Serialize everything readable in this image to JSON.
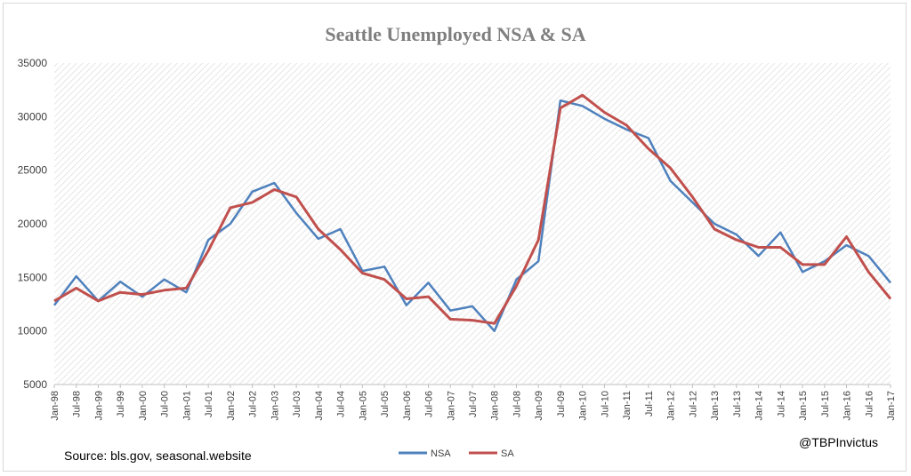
{
  "chart_data": {
    "type": "line",
    "title": "Seattle Unemployed NSA & SA",
    "xlabel": "",
    "ylabel": "",
    "ylim": [
      5000,
      35000
    ],
    "yticks": [
      5000,
      10000,
      15000,
      20000,
      25000,
      30000,
      35000
    ],
    "x_tick_labels": [
      "Jan-98",
      "Jul-98",
      "Jan-99",
      "Jul-99",
      "Jan-00",
      "Jul-00",
      "Jan-01",
      "Jul-01",
      "Jan-02",
      "Jul-02",
      "Jan-03",
      "Jul-03",
      "Jan-04",
      "Jul-04",
      "Jan-05",
      "Jul-05",
      "Jan-06",
      "Jul-06",
      "Jan-07",
      "Jul-07",
      "Jan-08",
      "Jul-08",
      "Jan-09",
      "Jul-09",
      "Jan-10",
      "Jul-10",
      "Jan-11",
      "Jul-11",
      "Jan-12",
      "Jul-12",
      "Jan-13",
      "Jul-13",
      "Jan-14",
      "Jul-14",
      "Jan-15",
      "Jul-15",
      "Jan-16",
      "Jul-16",
      "Jan-17"
    ],
    "grid": "diagonal-hatch background",
    "legend_position": "bottom-center",
    "series": [
      {
        "name": "NSA",
        "color": "#4f81bd",
        "x": [
          "Jan-98",
          "Jul-98",
          "Jan-99",
          "Jul-99",
          "Jan-00",
          "Jul-00",
          "Jan-01",
          "Jul-01",
          "Jan-02",
          "Jul-02",
          "Jan-03",
          "Jul-03",
          "Jan-04",
          "Jul-04",
          "Jan-05",
          "Jul-05",
          "Jan-06",
          "Jul-06",
          "Jan-07",
          "Jul-07",
          "Jan-08",
          "Jul-08",
          "Jan-09",
          "Jul-09",
          "Jan-10",
          "Jul-10",
          "Jan-11",
          "Jul-11",
          "Jan-12",
          "Jul-12",
          "Jan-13",
          "Jul-13",
          "Jan-14",
          "Jul-14",
          "Jan-15",
          "Jul-15",
          "Jan-16",
          "Jul-16",
          "Jan-17"
        ],
        "values": [
          12400,
          15100,
          12800,
          14600,
          13200,
          14800,
          13600,
          18500,
          20000,
          23000,
          23800,
          21000,
          18600,
          19500,
          15600,
          16000,
          12400,
          14500,
          11900,
          12300,
          10000,
          14800,
          16500,
          31500,
          31000,
          29800,
          28800,
          28000,
          24000,
          22000,
          20000,
          19000,
          17000,
          19200,
          15500,
          16500,
          18000,
          17000,
          14500
        ]
      },
      {
        "name": "SA",
        "color": "#c0504d",
        "x": [
          "Jan-98",
          "Jul-98",
          "Jan-99",
          "Jul-99",
          "Jan-00",
          "Jul-00",
          "Jan-01",
          "Jul-01",
          "Jan-02",
          "Jul-02",
          "Jan-03",
          "Jul-03",
          "Jan-04",
          "Jul-04",
          "Jan-05",
          "Jul-05",
          "Jan-06",
          "Jul-06",
          "Jan-07",
          "Jul-07",
          "Jan-08",
          "Jul-08",
          "Jan-09",
          "Jul-09",
          "Jan-10",
          "Jul-10",
          "Jan-11",
          "Jul-11",
          "Jan-12",
          "Jul-12",
          "Jan-13",
          "Jul-13",
          "Jan-14",
          "Jul-14",
          "Jan-15",
          "Jul-15",
          "Jan-16",
          "Jul-16",
          "Jan-17"
        ],
        "values": [
          12800,
          14000,
          12800,
          13600,
          13400,
          13800,
          14000,
          17500,
          21500,
          22000,
          23200,
          22500,
          19500,
          17600,
          15400,
          14800,
          13000,
          13200,
          11100,
          11000,
          10700,
          14200,
          18500,
          30800,
          32000,
          30400,
          29200,
          27000,
          25200,
          22500,
          19500,
          18500,
          17800,
          17800,
          16200,
          16200,
          18800,
          15500,
          13000
        ]
      }
    ]
  },
  "annotations": {
    "source": "Source: bls.gov, seasonal.website",
    "handle": "@TBPInvictus"
  }
}
